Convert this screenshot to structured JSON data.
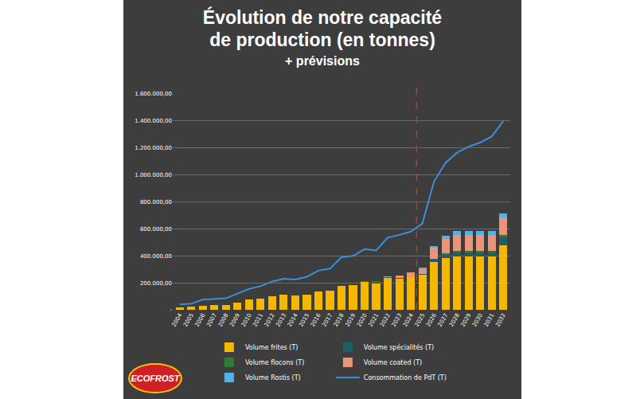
{
  "chart_data": {
    "type": "bar",
    "title": "Évolution de notre capacité\nde production (en tonnes)",
    "subtitle": "+ prévisions",
    "logo": "ECOFROST",
    "stacked": true,
    "grid": true,
    "legend": "bottom",
    "categories": [
      "2004",
      "2005",
      "2006",
      "2007",
      "2008",
      "2009",
      "2010",
      "2011",
      "2012",
      "2013",
      "2014",
      "2015",
      "2016",
      "2017",
      "2018",
      "2019",
      "2020",
      "2021",
      "2022",
      "2023",
      "2024",
      "2025",
      "2026",
      "2027",
      "2028",
      "2029",
      "2030",
      "2031",
      "2032"
    ],
    "series": [
      {
        "name": "Volume frites (T)",
        "type": "bar",
        "color": "#f5b800",
        "values": [
          20000,
          22000,
          30000,
          35000,
          38000,
          55000,
          75000,
          85000,
          100000,
          110000,
          105000,
          110000,
          135000,
          140000,
          180000,
          185000,
          205000,
          195000,
          235000,
          230000,
          240000,
          260000,
          355000,
          385000,
          395000,
          395000,
          395000,
          395000,
          480000
        ]
      },
      {
        "name": "Volume spécialités (T)",
        "type": "bar",
        "color": "#1f5f6b",
        "values": [
          0,
          0,
          0,
          0,
          0,
          0,
          0,
          0,
          0,
          0,
          0,
          0,
          0,
          0,
          0,
          0,
          0,
          5000,
          5000,
          5000,
          5000,
          5000,
          15000,
          20000,
          30000,
          30000,
          30000,
          30000,
          60000
        ]
      },
      {
        "name": "Volume flocons (T)",
        "type": "bar",
        "color": "#2e7d32",
        "values": [
          0,
          0,
          0,
          0,
          0,
          0,
          0,
          0,
          0,
          0,
          0,
          0,
          0,
          0,
          0,
          0,
          10000,
          15000,
          0,
          0,
          0,
          0,
          10000,
          12000,
          12000,
          12000,
          12000,
          12000,
          15000
        ]
      },
      {
        "name": "Volume coated (T)",
        "type": "bar",
        "color": "#e8957a",
        "values": [
          0,
          0,
          0,
          0,
          0,
          0,
          0,
          0,
          0,
          0,
          0,
          0,
          0,
          0,
          0,
          0,
          0,
          0,
          10000,
          20000,
          30000,
          35000,
          80000,
          110000,
          120000,
          120000,
          120000,
          120000,
          130000
        ]
      },
      {
        "name": "Volume Rostis (T)",
        "type": "bar",
        "color": "#4fb3e8",
        "values": [
          0,
          0,
          0,
          0,
          0,
          0,
          0,
          0,
          0,
          0,
          0,
          0,
          0,
          0,
          0,
          0,
          0,
          0,
          0,
          0,
          0,
          10000,
          15000,
          20000,
          25000,
          30000,
          30000,
          30000,
          30000
        ]
      },
      {
        "name": "Consommation de PdT (T)",
        "type": "line",
        "color": "#3a8fd9",
        "values": [
          40000,
          45000,
          75000,
          80000,
          85000,
          120000,
          155000,
          175000,
          210000,
          230000,
          225000,
          245000,
          290000,
          305000,
          390000,
          400000,
          450000,
          440000,
          535000,
          555000,
          580000,
          640000,
          950000,
          1090000,
          1165000,
          1210000,
          1240000,
          1285000,
          1400000
        ]
      }
    ],
    "ylim": [
      0,
      1600000
    ],
    "yticks": [
      {
        "value": 0,
        "label": "-"
      },
      {
        "value": 200000,
        "label": "200.000,00"
      },
      {
        "value": 400000,
        "label": "400.000,00"
      },
      {
        "value": 600000,
        "label": "600.000,00"
      },
      {
        "value": 800000,
        "label": "800.000,00"
      },
      {
        "value": 1000000,
        "label": "1.000.000,00"
      },
      {
        "value": 1200000,
        "label": "1.200.000,00"
      },
      {
        "value": 1400000,
        "label": "1.400.000,00"
      },
      {
        "value": 1600000,
        "label": "1.600.000,00"
      }
    ],
    "reference_line": {
      "after_category": "2024",
      "color": "#c0392b",
      "line_style": "dashed"
    }
  }
}
